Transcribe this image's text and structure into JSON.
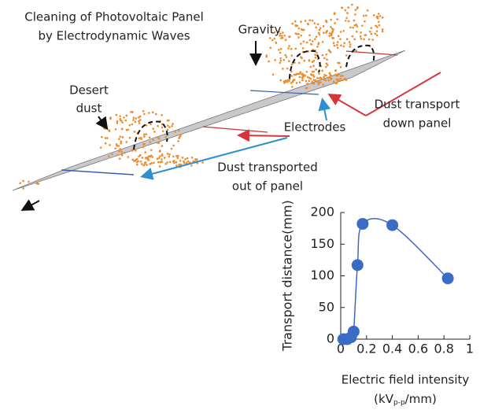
{
  "diagram": {
    "title": [
      "Cleaning of Photovoltaic Panel",
      "by Electrodynamic Waves"
    ],
    "gravity": "Gravity",
    "desert_dust": [
      "Desert",
      "dust"
    ],
    "electrodes": "Electrodes",
    "dust_transport_down": [
      "Dust transport",
      "down panel"
    ],
    "dust_transported_out": [
      "Dust transported",
      "out of panel"
    ]
  },
  "chart_data": {
    "type": "scatter",
    "x_label": "Electric field intensity",
    "x_label_unit": [
      "(kV",
      "p-p",
      "/mm)"
    ],
    "y_label": "Transport distance(mm)",
    "x": [
      0.02,
      0.05,
      0.08,
      0.1,
      0.13,
      0.17,
      0.4,
      0.83
    ],
    "values": [
      0,
      0,
      3,
      12,
      117,
      182,
      180,
      96
    ],
    "color": "#3a6cc6",
    "xlim": [
      0,
      1
    ],
    "xticks": [
      0,
      0.2,
      0.4,
      0.6,
      0.8,
      1
    ],
    "ylim": [
      0,
      200
    ],
    "yticks": [
      0,
      50,
      100,
      150,
      200
    ]
  }
}
